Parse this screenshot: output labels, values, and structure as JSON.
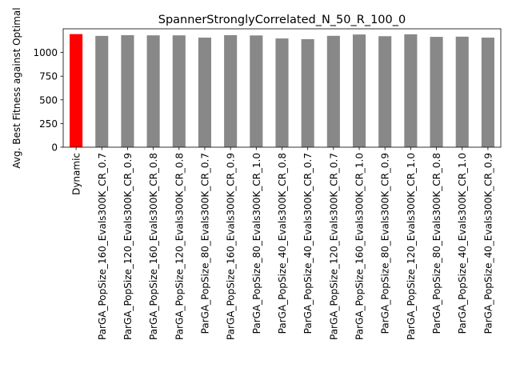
{
  "chart_data": {
    "type": "bar",
    "title": "SpannerStronglyCorrelated_N_50_R_100_0",
    "xlabel": "",
    "ylabel": "Avg. Best Fitness against Optimal",
    "ylim": [
      0,
      1250
    ],
    "yticks": [
      0,
      250,
      500,
      750,
      1000
    ],
    "grid": false,
    "legend": "none",
    "bar_color": "#888888",
    "highlight_color": "#ff0000",
    "categories": [
      "Dynamic",
      "ParGA_PopSize_160_Evals300K_CR_0.7",
      "ParGA_PopSize_120_Evals300K_CR_0.9",
      "ParGA_PopSize_160_Evals300K_CR_0.8",
      "ParGA_PopSize_120_Evals300K_CR_0.8",
      "ParGA_PopSize_80_Evals300K_CR_0.7",
      "ParGA_PopSize_160_Evals300K_CR_0.9",
      "ParGA_PopSize_80_Evals300K_CR_1.0",
      "ParGA_PopSize_40_Evals300K_CR_0.8",
      "ParGA_PopSize_40_Evals300K_CR_0.7",
      "ParGA_PopSize_120_Evals300K_CR_0.7",
      "ParGA_PopSize_160_Evals300K_CR_1.0",
      "ParGA_PopSize_80_Evals300K_CR_0.9",
      "ParGA_PopSize_120_Evals300K_CR_1.0",
      "ParGA_PopSize_80_Evals300K_CR_0.8",
      "ParGA_PopSize_40_Evals300K_CR_1.0",
      "ParGA_PopSize_40_Evals300K_CR_0.9"
    ],
    "values": [
      1194,
      1175,
      1183,
      1181,
      1181,
      1157,
      1183,
      1180,
      1148,
      1141,
      1176,
      1190,
      1172,
      1192,
      1165,
      1167,
      1157
    ],
    "highlight_index": 0
  }
}
